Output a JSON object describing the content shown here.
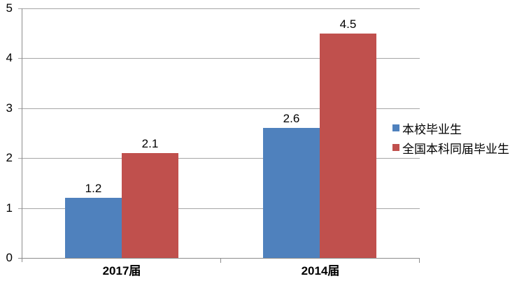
{
  "chart_data": {
    "type": "bar",
    "title": "",
    "xlabel": "",
    "ylabel": "",
    "categories": [
      "2017届",
      "2014届"
    ],
    "series": [
      {
        "name": "本校毕业生",
        "color": "#4F81BD",
        "values": [
          1.2,
          2.6
        ],
        "labels": [
          "1.2",
          "2.6"
        ]
      },
      {
        "name": "全国本科同届毕业生",
        "color": "#C0504D",
        "values": [
          2.1,
          4.5
        ],
        "labels": [
          "2.1",
          "4.5"
        ]
      }
    ],
    "ylim": [
      0,
      5
    ],
    "ytick_interval": 1,
    "ytick_labels_top_to_bottom": [
      "5",
      "4",
      "3",
      "2",
      "1",
      "0"
    ],
    "grid": true,
    "data_labels_shown": true,
    "legend_position": "right"
  },
  "legend": {
    "items": [
      {
        "label": "本校毕业生",
        "color": "#4F81BD"
      },
      {
        "label": "全国本科同届毕业生",
        "color": "#C0504D"
      }
    ]
  },
  "colors": {
    "series_blue": "#4F81BD",
    "series_red": "#C0504D",
    "gridline": "#A6A6A6",
    "axis": "#8C8C8C",
    "text": "#000000",
    "background": "#FFFFFF"
  }
}
